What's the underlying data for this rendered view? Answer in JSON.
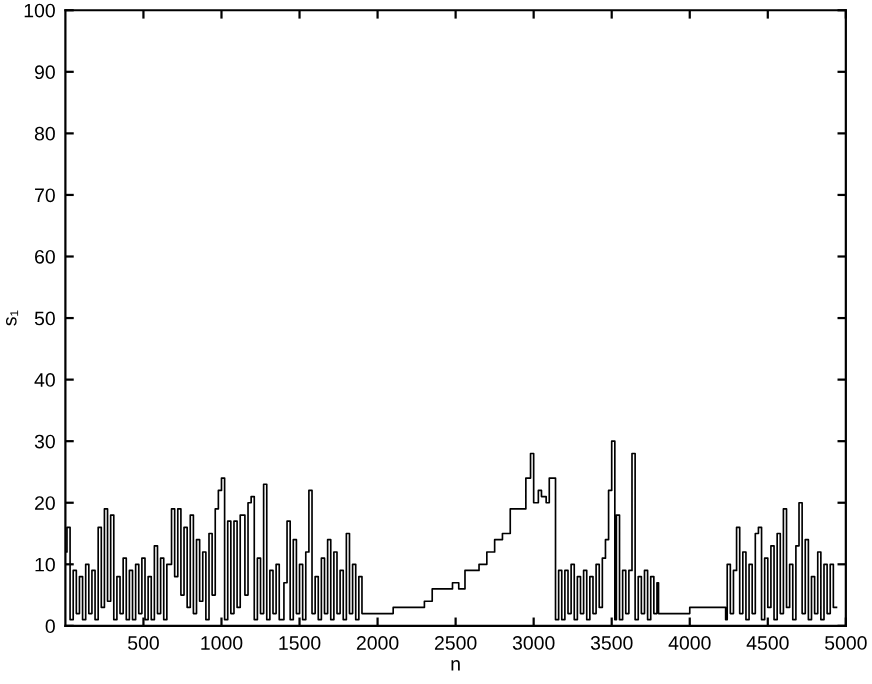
{
  "chart_data": {
    "type": "step",
    "xlabel": "n",
    "ylabel": "s₁",
    "xlim": [
      0,
      5000
    ],
    "ylim": [
      0,
      100
    ],
    "xticks": [
      500,
      1000,
      1500,
      2000,
      2500,
      3000,
      3500,
      4000,
      4500,
      5000
    ],
    "yticks": [
      0,
      10,
      20,
      30,
      40,
      50,
      60,
      70,
      80,
      90,
      100
    ],
    "grid": false,
    "marker": "none",
    "line_style": "solid",
    "series": [
      {
        "color": "#000000",
        "x": [
          0,
          10,
          30,
          50,
          70,
          90,
          110,
          130,
          150,
          170,
          190,
          210,
          230,
          250,
          270,
          290,
          310,
          330,
          350,
          370,
          390,
          410,
          430,
          450,
          470,
          490,
          510,
          530,
          550,
          570,
          590,
          610,
          630,
          650,
          680,
          700,
          720,
          740,
          760,
          780,
          800,
          820,
          840,
          860,
          880,
          900,
          920,
          940,
          960,
          980,
          1000,
          1020,
          1040,
          1060,
          1080,
          1100,
          1120,
          1150,
          1170,
          1190,
          1210,
          1230,
          1250,
          1270,
          1290,
          1310,
          1330,
          1350,
          1370,
          1400,
          1420,
          1440,
          1460,
          1480,
          1500,
          1520,
          1540,
          1560,
          1580,
          1600,
          1620,
          1640,
          1660,
          1680,
          1700,
          1720,
          1740,
          1760,
          1780,
          1800,
          1820,
          1840,
          1860,
          1880,
          1900,
          2100,
          2300,
          2350,
          2480,
          2520,
          2560,
          2650,
          2700,
          2750,
          2800,
          2850,
          2950,
          2980,
          3000,
          3030,
          3050,
          3080,
          3100,
          3140,
          3160,
          3180,
          3200,
          3220,
          3240,
          3260,
          3280,
          3300,
          3320,
          3340,
          3360,
          3380,
          3400,
          3420,
          3440,
          3460,
          3480,
          3500,
          3520,
          3530,
          3550,
          3570,
          3590,
          3610,
          3630,
          3650,
          3670,
          3690,
          3710,
          3730,
          3750,
          3770,
          3790,
          3800,
          4000,
          4230,
          4240,
          4260,
          4280,
          4300,
          4320,
          4340,
          4360,
          4380,
          4400,
          4420,
          4440,
          4460,
          4480,
          4500,
          4520,
          4540,
          4560,
          4580,
          4600,
          4620,
          4640,
          4660,
          4680,
          4700,
          4720,
          4740,
          4760,
          4780,
          4800,
          4820,
          4840,
          4860,
          4880,
          4900,
          4920,
          4940
        ],
        "values": [
          12,
          16,
          1,
          9,
          2,
          8,
          1,
          10,
          2,
          9,
          1,
          16,
          3,
          19,
          4,
          18,
          1,
          8,
          2,
          11,
          1,
          9,
          1,
          10,
          2,
          11,
          1,
          8,
          1,
          13,
          2,
          11,
          1,
          10,
          19,
          8,
          19,
          5,
          16,
          3,
          18,
          2,
          14,
          4,
          12,
          1,
          15,
          5,
          19,
          22,
          24,
          1,
          17,
          2,
          17,
          3,
          18,
          5,
          20,
          21,
          1,
          11,
          2,
          23,
          1,
          9,
          2,
          10,
          1,
          7,
          17,
          1,
          14,
          2,
          10,
          1,
          12,
          22,
          2,
          8,
          1,
          11,
          2,
          14,
          1,
          12,
          2,
          9,
          1,
          15,
          2,
          10,
          1,
          8,
          2,
          3,
          4,
          6,
          7,
          6,
          9,
          10,
          12,
          14,
          15,
          19,
          24,
          28,
          20,
          22,
          21,
          20,
          24,
          1,
          9,
          1,
          9,
          2,
          10,
          1,
          8,
          2,
          9,
          1,
          8,
          2,
          10,
          3,
          11,
          14,
          22,
          30,
          1,
          18,
          1,
          9,
          2,
          9,
          28,
          1,
          8,
          2,
          9,
          1,
          8,
          2,
          7,
          2,
          3,
          1,
          10,
          2,
          9,
          16,
          2,
          12,
          1,
          10,
          2,
          15,
          16,
          1,
          11,
          3,
          13,
          1,
          15,
          2,
          19,
          3,
          10,
          1,
          13,
          20,
          2,
          14,
          1,
          8,
          2,
          12,
          1,
          10,
          2,
          10,
          3,
          3
        ]
      }
    ]
  }
}
